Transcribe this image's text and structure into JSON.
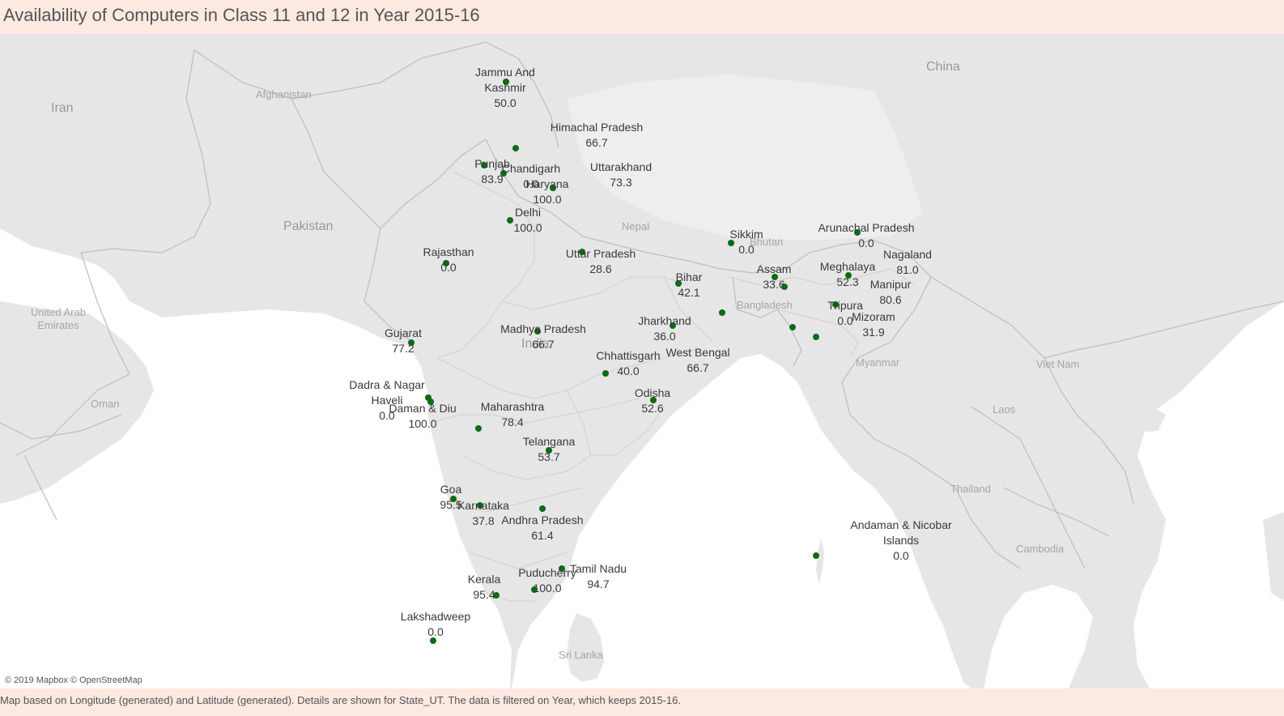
{
  "title": "Availability of Computers in Class 11 and 12 in Year 2015-16",
  "attribution": "© 2019 Mapbox © OpenStreetMap",
  "caption": "Map based on Longitude (generated) and Latitude (generated).  Details are shown for State_UT. The data is filtered on Year, which keeps 2015-16.",
  "colors": {
    "marker": "#0c6b14",
    "land": "#e6e6e6",
    "water": "#ffffff",
    "header_bg": "#fbe9e2"
  },
  "countries": {
    "iran": "Iran",
    "afghanistan": "Afghanistan",
    "pakistan": "Pakistan",
    "china": "China",
    "nepal": "Nepal",
    "bhutan": "Bhutan",
    "bangladesh": "Bangladesh",
    "india": "India",
    "myanmar": "Myanmar",
    "uae": "United Arab\nEmirates",
    "oman": "Oman",
    "vietnam": "Viet Nam",
    "laos": "Laos",
    "thailand": "Thailand",
    "cambodia": "Cambodia",
    "srilanka": "Sri Lanka"
  },
  "states": [
    {
      "name": "Jammu And\nKashmir",
      "value": "50.0"
    },
    {
      "name": "Himachal Pradesh",
      "value": "66.7"
    },
    {
      "name": "Punjab",
      "value": "83.9"
    },
    {
      "name": "Chandigarh",
      "value": "0.0"
    },
    {
      "name": "Uttarakhand",
      "value": "73.3"
    },
    {
      "name": "Haryana",
      "value": "100.0"
    },
    {
      "name": "Delhi",
      "value": "100.0"
    },
    {
      "name": "Rajasthan",
      "value": "0.0"
    },
    {
      "name": "Uttar Pradesh",
      "value": "28.6"
    },
    {
      "name": "Sikkim",
      "value": "0.0"
    },
    {
      "name": "Arunachal Pradesh",
      "value": "0.0"
    },
    {
      "name": "Nagaland",
      "value": "81.0"
    },
    {
      "name": "Assam",
      "value": "33.6"
    },
    {
      "name": "Meghalaya",
      "value": "52.3"
    },
    {
      "name": "Manipur",
      "value": "80.6"
    },
    {
      "name": "Bihar",
      "value": "42.1"
    },
    {
      "name": "Tripura",
      "value": "0.0"
    },
    {
      "name": "Mizoram",
      "value": "31.9"
    },
    {
      "name": "Jharkhand",
      "value": "36.0"
    },
    {
      "name": "Gujarat",
      "value": "77.2"
    },
    {
      "name": "Madhya Pradesh",
      "value": "66.7"
    },
    {
      "name": "Chhattisgarh",
      "value": "40.0"
    },
    {
      "name": "West Bengal",
      "value": "66.7"
    },
    {
      "name": "Dadra & Nagar\nHaveli",
      "value": "0.0"
    },
    {
      "name": "Daman & Diu",
      "value": "100.0"
    },
    {
      "name": "Odisha",
      "value": "52.6"
    },
    {
      "name": "Maharashtra",
      "value": "78.4"
    },
    {
      "name": "Telangana",
      "value": "53.7"
    },
    {
      "name": "Goa",
      "value": "95.5"
    },
    {
      "name": "Karnataka",
      "value": "37.8"
    },
    {
      "name": "Andhra Pradesh",
      "value": "61.4"
    },
    {
      "name": "Andaman & Nicobar\nIslands",
      "value": "0.0"
    },
    {
      "name": "Tamil Nadu",
      "value": "94.7"
    },
    {
      "name": "Puducherry",
      "value": "100.0"
    },
    {
      "name": "Kerala",
      "value": "95.4"
    },
    {
      "name": "Lakshadweep",
      "value": "0.0"
    }
  ]
}
